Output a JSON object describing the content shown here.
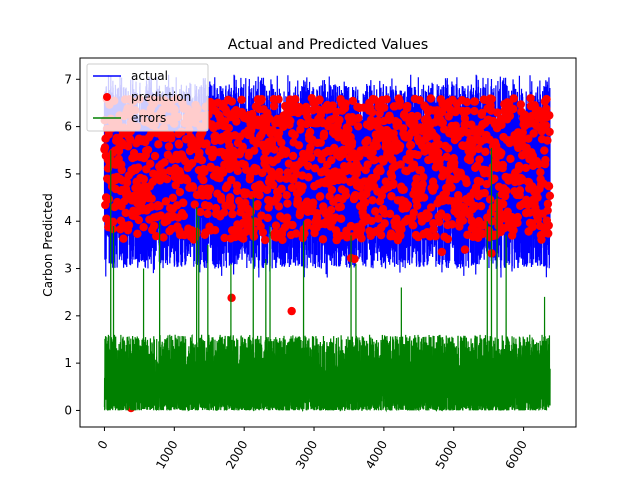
{
  "chart_data": {
    "type": "line",
    "title": "Actual and Predicted Values",
    "xlabel": "",
    "ylabel": "Carbon Predicted",
    "xlim": [
      -350,
      6750
    ],
    "ylim": [
      -0.35,
      7.45
    ],
    "xticks": [
      0,
      1000,
      2000,
      3000,
      4000,
      5000,
      6000
    ],
    "xtick_labels": [
      "0",
      "1000",
      "2000",
      "3000",
      "4000",
      "5000",
      "6000"
    ],
    "yticks": [
      0,
      1,
      2,
      3,
      4,
      5,
      6,
      7
    ],
    "ytick_labels": [
      "0",
      "1",
      "2",
      "3",
      "4",
      "5",
      "6",
      "7"
    ],
    "n_points": 6380,
    "legend_position": "top-left",
    "grid": false,
    "series": [
      {
        "name": "actual",
        "style": "line",
        "color": "#0000ff",
        "min": 2.8,
        "max": 7.1,
        "typical_range": [
          3.0,
          6.9
        ]
      },
      {
        "name": "prediction",
        "style": "markers",
        "color": "#ff0000",
        "min": 0.05,
        "max": 6.6,
        "typical_range": [
          3.6,
          6.6
        ],
        "outliers": [
          {
            "x": 380,
            "y": 0.05
          },
          {
            "x": 1820,
            "y": 2.38
          },
          {
            "x": 2680,
            "y": 2.1
          },
          {
            "x": 3530,
            "y": 3.22
          },
          {
            "x": 3580,
            "y": 3.2
          },
          {
            "x": 4830,
            "y": 3.35
          },
          {
            "x": 5160,
            "y": 3.4
          },
          {
            "x": 5540,
            "y": 3.32
          },
          {
            "x": 4200,
            "y": 3.6
          }
        ]
      },
      {
        "name": "errors",
        "style": "line",
        "color": "#008000",
        "min": 0.0,
        "max": 5.55,
        "typical_range": [
          0.0,
          1.6
        ],
        "spikes": [
          {
            "x": 90,
            "y": 5.5
          },
          {
            "x": 130,
            "y": 3.9
          },
          {
            "x": 560,
            "y": 3.0
          },
          {
            "x": 790,
            "y": 4.0
          },
          {
            "x": 1320,
            "y": 4.3
          },
          {
            "x": 1350,
            "y": 4.1
          },
          {
            "x": 1480,
            "y": 3.5
          },
          {
            "x": 1810,
            "y": 3.1
          },
          {
            "x": 2130,
            "y": 4.5
          },
          {
            "x": 2310,
            "y": 3.2
          },
          {
            "x": 2370,
            "y": 3.9
          },
          {
            "x": 2850,
            "y": 4.0
          },
          {
            "x": 3530,
            "y": 3.7
          },
          {
            "x": 3600,
            "y": 3.1
          },
          {
            "x": 4250,
            "y": 2.6
          },
          {
            "x": 5480,
            "y": 4.0
          },
          {
            "x": 5540,
            "y": 5.55
          },
          {
            "x": 5620,
            "y": 4.6
          },
          {
            "x": 5750,
            "y": 3.7
          },
          {
            "x": 6300,
            "y": 2.4
          }
        ]
      }
    ]
  }
}
